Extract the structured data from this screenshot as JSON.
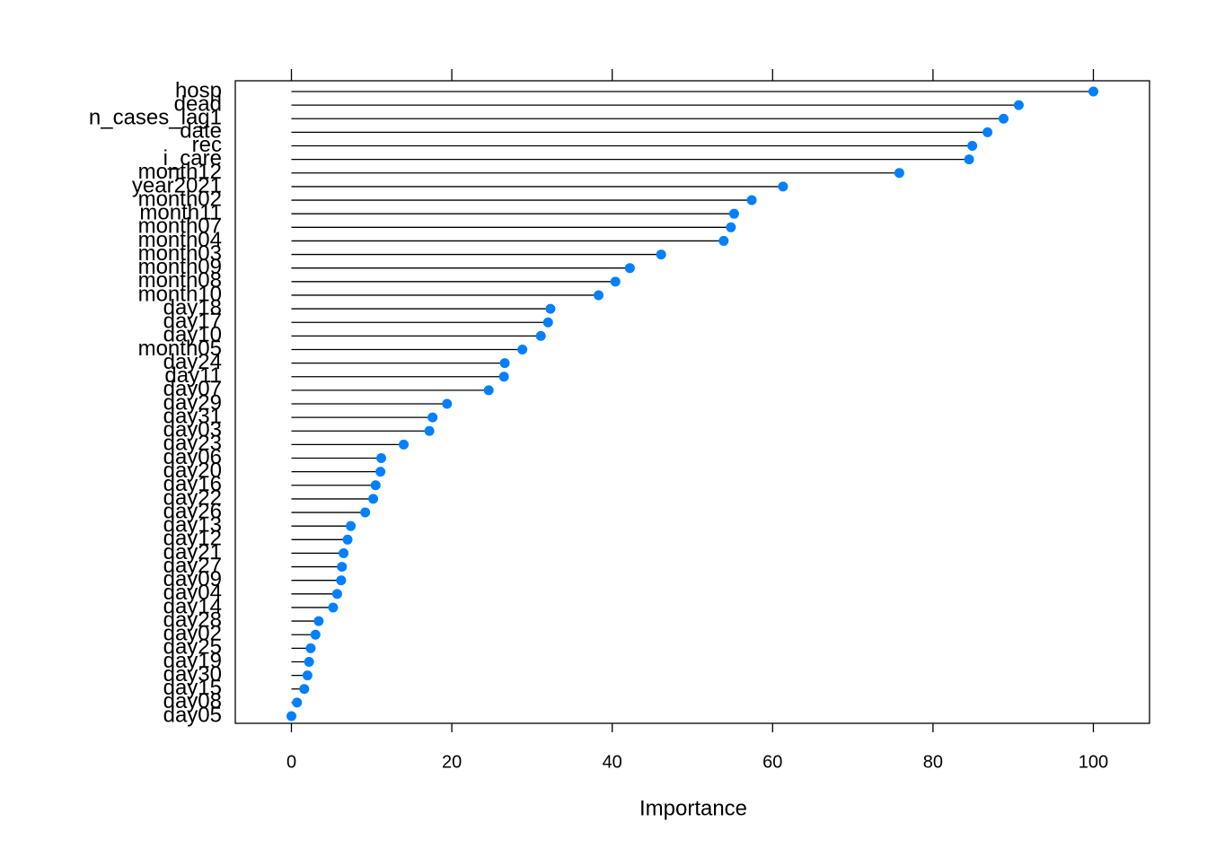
{
  "chart_data": {
    "type": "lollipop",
    "xlabel": "Importance",
    "color": "#0080ff",
    "categories": [
      "hosp",
      "dead",
      "n_cases_lag1",
      "date",
      "rec",
      "i_care",
      "month12",
      "year2021",
      "month02",
      "month11",
      "month07",
      "month04",
      "month03",
      "month09",
      "month08",
      "month10",
      "day18",
      "day17",
      "day10",
      "month05",
      "day24",
      "day11",
      "day07",
      "day29",
      "day31",
      "day03",
      "day23",
      "day06",
      "day20",
      "day16",
      "day22",
      "day26",
      "day13",
      "day12",
      "day21",
      "day27",
      "day09",
      "day04",
      "day14",
      "day28",
      "day02",
      "day25",
      "day19",
      "day30",
      "day15",
      "day08",
      "day05"
    ],
    "values": [
      100,
      90.7,
      88.8,
      86.8,
      84.9,
      84.5,
      75.8,
      61.3,
      57.4,
      55.2,
      54.8,
      53.9,
      46.1,
      42.2,
      40.4,
      38.3,
      32.3,
      32.0,
      31.1,
      28.8,
      26.6,
      26.5,
      24.6,
      19.4,
      17.6,
      17.2,
      14.0,
      11.2,
      11.1,
      10.5,
      10.2,
      9.2,
      7.4,
      7.0,
      6.5,
      6.3,
      6.2,
      5.7,
      5.2,
      3.4,
      3.0,
      2.4,
      2.2,
      2.0,
      1.6,
      0.7,
      0
    ],
    "xlim": [
      -7,
      107
    ],
    "xticks": [
      0,
      20,
      40,
      60,
      80,
      100
    ]
  }
}
